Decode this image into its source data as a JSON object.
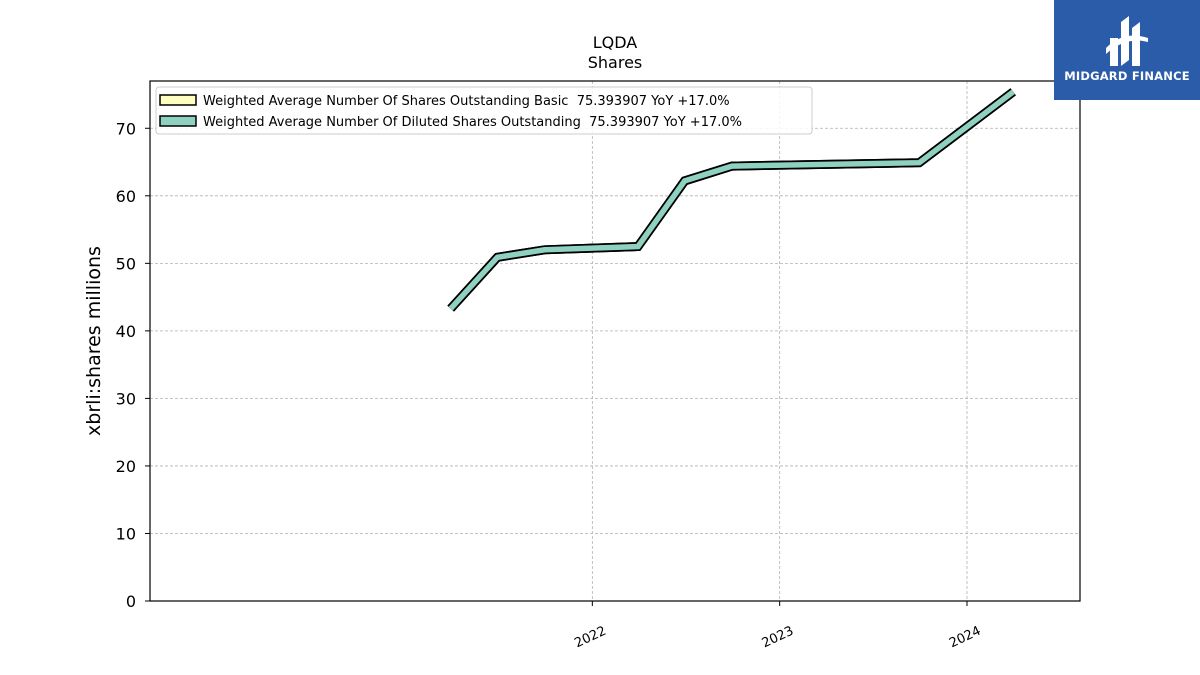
{
  "header": {
    "title": "LQDA",
    "subtitle": "Shares"
  },
  "logo": {
    "text": "MIDGARD FINANCE",
    "background": "#2a5caa"
  },
  "chart_data": {
    "type": "line",
    "ylabel": "xbrli:shares millions",
    "xlabel": "",
    "ylim": [
      0,
      77
    ],
    "yticks": [
      0,
      10,
      20,
      30,
      40,
      50,
      60,
      70
    ],
    "xticks": [
      "2022",
      "2023",
      "2024"
    ],
    "grid": true,
    "legend_position": "top-left",
    "x": [
      "2021-03-31",
      "2021-06-30",
      "2021-09-30",
      "2022-03-31",
      "2022-06-30",
      "2022-09-30",
      "2023-09-30",
      "2024-03-31"
    ],
    "series": [
      {
        "name": "Weighted Average Number Of Shares Outstanding Basic  75.393907 YoY +17.0%",
        "color": "#ffffc0",
        "values": [
          43.3,
          50.9,
          52.0,
          52.5,
          62.2,
          64.4,
          64.9,
          75.4
        ]
      },
      {
        "name": "Weighted Average Number Of Diluted Shares Outstanding  75.393907 YoY +17.0%",
        "color": "#8ed1c0",
        "values": [
          43.3,
          50.9,
          52.0,
          52.5,
          62.2,
          64.4,
          64.9,
          75.4
        ]
      }
    ]
  }
}
